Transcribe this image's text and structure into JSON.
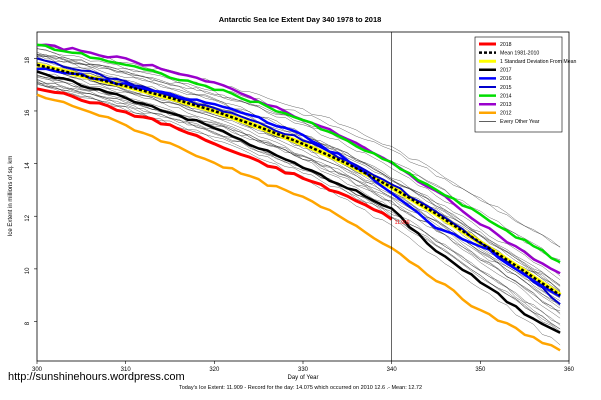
{
  "chart_data": {
    "type": "line",
    "title": "Antarctic Sea Ice Extent Day 340 1978 to 2018",
    "xlabel": "Day of Year",
    "ylabel": "Ice Extent in millions of sq. km",
    "xlim": [
      300,
      360
    ],
    "ylim": [
      6.5,
      19
    ],
    "xticks": [
      "300",
      "310",
      "320",
      "330",
      "340",
      "350",
      "360"
    ],
    "yticks": [
      "8",
      "10",
      "12",
      "14",
      "16",
      "18"
    ],
    "marker_day": 340,
    "marker_value_label": "11.909",
    "legend_position": "top-right",
    "series": [
      {
        "name": "2018",
        "color": "#ff0000",
        "width": 3,
        "x": [
          300,
          305,
          310,
          315,
          320,
          325,
          330,
          335,
          340
        ],
        "values": [
          16.9,
          16.45,
          15.95,
          15.45,
          14.75,
          14.05,
          13.45,
          12.75,
          11.909
        ]
      },
      {
        "name": "Mean 1981-2010",
        "color": "#000000",
        "width": 2.5,
        "dash": true,
        "x": [
          300,
          305,
          310,
          315,
          320,
          325,
          330,
          335,
          340,
          345,
          350,
          355,
          359
        ],
        "values": [
          17.75,
          17.35,
          16.95,
          16.5,
          16.0,
          15.4,
          14.75,
          14.0,
          13.1,
          12.1,
          11.0,
          9.9,
          9.0
        ]
      },
      {
        "name": "1 Standard Deviation From Mean",
        "color": "#ffff00",
        "width": 5,
        "x": [
          300,
          305,
          310,
          315,
          320,
          325,
          330,
          335,
          340,
          345,
          350,
          355,
          359
        ],
        "values": [
          17.75,
          17.35,
          16.95,
          16.5,
          16.0,
          15.4,
          14.75,
          14.0,
          13.1,
          12.1,
          11.0,
          9.9,
          9.0
        ]
      },
      {
        "name": "2017",
        "color": "#000000",
        "width": 2.5,
        "x": [
          300,
          305,
          310,
          315,
          320,
          325,
          330,
          335,
          340,
          345,
          350,
          355,
          359
        ],
        "values": [
          17.45,
          17.0,
          16.5,
          15.95,
          15.35,
          14.6,
          13.85,
          13.1,
          12.25,
          10.7,
          9.5,
          8.3,
          7.6
        ]
      },
      {
        "name": "2016",
        "color": "#0000ff",
        "width": 2.5,
        "x": [
          300,
          305,
          310,
          315,
          320,
          325,
          330,
          335,
          340,
          345,
          350,
          355,
          359
        ],
        "values": [
          17.6,
          17.35,
          17.0,
          16.6,
          16.25,
          15.75,
          15.05,
          14.15,
          12.85,
          11.6,
          10.9,
          9.8,
          8.9
        ]
      },
      {
        "name": "2015",
        "color": "#0000cc",
        "width": 2,
        "x": [
          300,
          305,
          310,
          315,
          320,
          325,
          330,
          335,
          340,
          345,
          350,
          355,
          359
        ],
        "values": [
          18.0,
          17.55,
          17.1,
          16.6,
          16.1,
          15.55,
          14.9,
          14.1,
          13.2,
          12.2,
          11.0,
          9.8,
          8.7
        ]
      },
      {
        "name": "2014",
        "color": "#00dd00",
        "width": 2.5,
        "x": [
          300,
          305,
          310,
          315,
          320,
          325,
          330,
          335,
          340,
          345,
          350,
          355,
          359
        ],
        "values": [
          18.5,
          18.15,
          17.75,
          17.3,
          16.85,
          16.3,
          15.65,
          14.85,
          14.0,
          13.0,
          12.05,
          11.05,
          10.25
        ]
      },
      {
        "name": "2013",
        "color": "#9900cc",
        "width": 2.5,
        "x": [
          300,
          305,
          310,
          315,
          320,
          325,
          330,
          335,
          340,
          345,
          350,
          355,
          359
        ],
        "values": [
          18.5,
          18.3,
          17.95,
          17.55,
          17.05,
          16.4,
          15.7,
          14.95,
          14.0,
          12.95,
          11.75,
          10.6,
          9.8
        ]
      },
      {
        "name": "2012",
        "color": "#ffa500",
        "width": 2.5,
        "x": [
          300,
          305,
          310,
          315,
          320,
          325,
          330,
          335,
          340,
          345,
          350,
          355,
          359
        ],
        "values": [
          16.6,
          16.1,
          15.45,
          14.75,
          14.05,
          13.35,
          12.7,
          11.85,
          10.8,
          9.6,
          8.4,
          7.55,
          6.9
        ]
      },
      {
        "name": "Every Other Year",
        "color": "#000000",
        "width": 0.6
      }
    ]
  },
  "footer_text": "Today's Ice Extent: 11.909  - Record for the day: 14.075 which occurred on 2010 12.6 .- Mean: 12.72",
  "watermark": "http://sunshinehours.wordpress.com"
}
